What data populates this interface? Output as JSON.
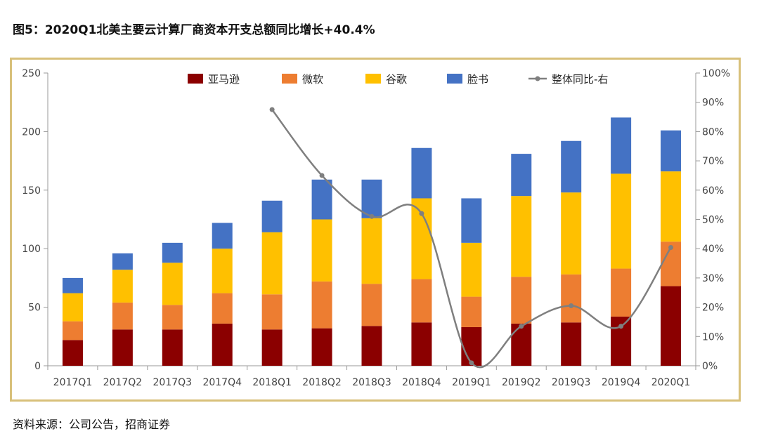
{
  "title": "图5：2020Q1北美主要云计算厂商资本开支总额同比增长+40.4%",
  "source": "资料来源：公司公告，招商证券",
  "colors": {
    "amazon": "#8b0000",
    "microsoft": "#ed7d31",
    "google": "#ffc000",
    "facebook": "#4472c4",
    "yoy_line": "#7f7f7f",
    "frame": "#d8c07a"
  },
  "chart_data": {
    "type": "bar",
    "stacked": true,
    "categories": [
      "2017Q1",
      "2017Q2",
      "2017Q3",
      "2017Q4",
      "2018Q1",
      "2018Q2",
      "2018Q3",
      "2018Q4",
      "2019Q1",
      "2019Q2",
      "2019Q3",
      "2019Q4",
      "2020Q1"
    ],
    "series": [
      {
        "name": "亚马逊",
        "key": "amazon",
        "values": [
          22,
          31,
          31,
          36,
          31,
          32,
          34,
          37,
          33,
          36,
          37,
          42,
          68
        ]
      },
      {
        "name": "微软",
        "key": "microsoft",
        "values": [
          16,
          23,
          21,
          26,
          30,
          40,
          36,
          37,
          26,
          40,
          41,
          41,
          38
        ]
      },
      {
        "name": "谷歌",
        "key": "google",
        "values": [
          24,
          28,
          36,
          38,
          53,
          53,
          56,
          69,
          46,
          69,
          70,
          81,
          60
        ]
      },
      {
        "name": "脸书",
        "key": "facebook",
        "values": [
          13,
          14,
          17,
          22,
          27,
          34,
          33,
          43,
          38,
          36,
          44,
          48,
          35
        ]
      }
    ],
    "line": {
      "name": "整体同比-右",
      "axis": "right",
      "values": [
        null,
        null,
        null,
        null,
        0.875,
        0.65,
        0.51,
        0.52,
        0.01,
        0.135,
        0.205,
        0.135,
        0.404
      ]
    },
    "ylim": [
      0,
      250
    ],
    "yticks": [
      "0",
      "50",
      "100",
      "150",
      "200",
      "250"
    ],
    "y2lim": [
      0,
      1.0
    ],
    "y2ticks": [
      "0%",
      "10%",
      "20%",
      "30%",
      "40%",
      "50%",
      "60%",
      "70%",
      "80%",
      "90%",
      "100%"
    ],
    "legend_position": "top",
    "grid": false
  }
}
